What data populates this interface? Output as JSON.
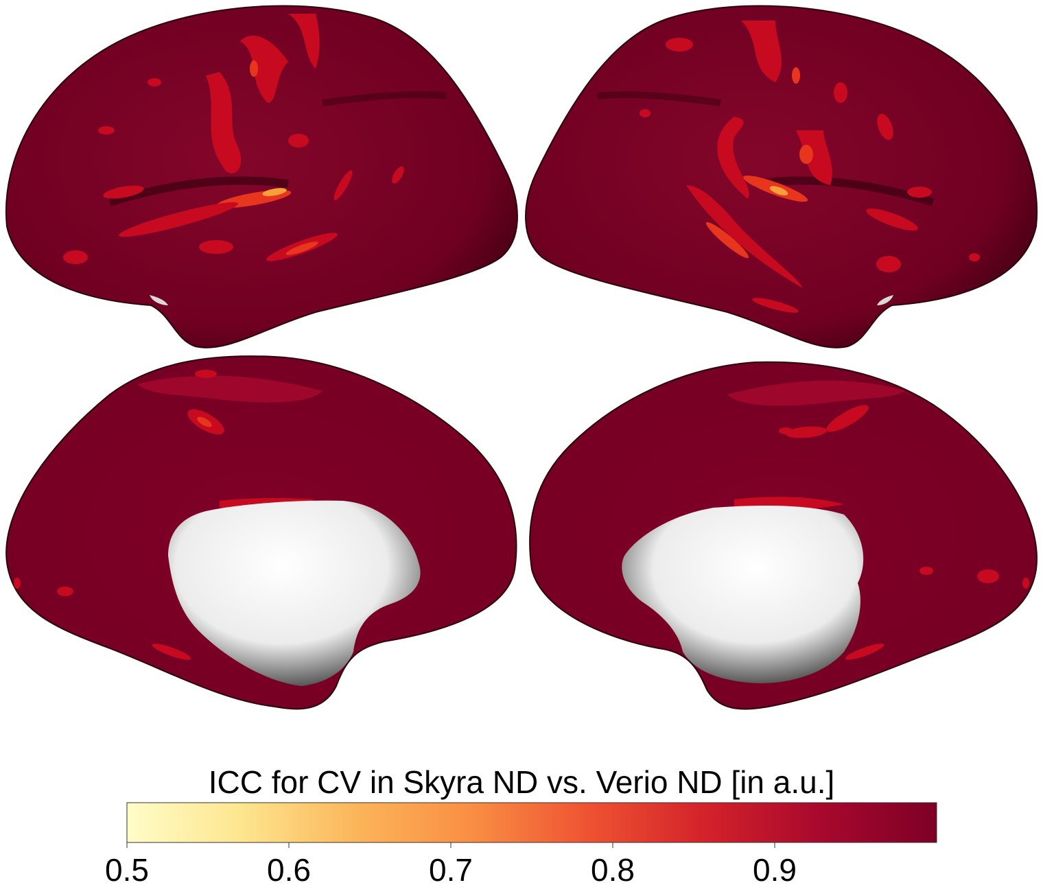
{
  "figure": {
    "views": [
      {
        "hemisphere": "left",
        "view": "lateral"
      },
      {
        "hemisphere": "right",
        "view": "lateral"
      },
      {
        "hemisphere": "left",
        "view": "medial"
      },
      {
        "hemisphere": "right",
        "view": "medial"
      }
    ],
    "colormap": {
      "title": "ICC for CV in Skyra ND vs. Verio ND [in a.u.]",
      "min": 0.5,
      "max": 1.0,
      "ticks": [
        "0.5",
        "0.6",
        "0.7",
        "0.8",
        "0.9"
      ],
      "tick_values": [
        0.5,
        0.6,
        0.7,
        0.8,
        0.9
      ],
      "stops": [
        "#fffdc8",
        "#fde58e",
        "#fcb459",
        "#f98d43",
        "#ee5232",
        "#d3222a",
        "#a8082d",
        "#7e0026"
      ]
    },
    "colors": {
      "cortex_base": "#7e0026",
      "highlight_mid": "#c80a20",
      "highlight_hot": "#e8361e",
      "medial_wall": "#f2f2f2"
    }
  }
}
